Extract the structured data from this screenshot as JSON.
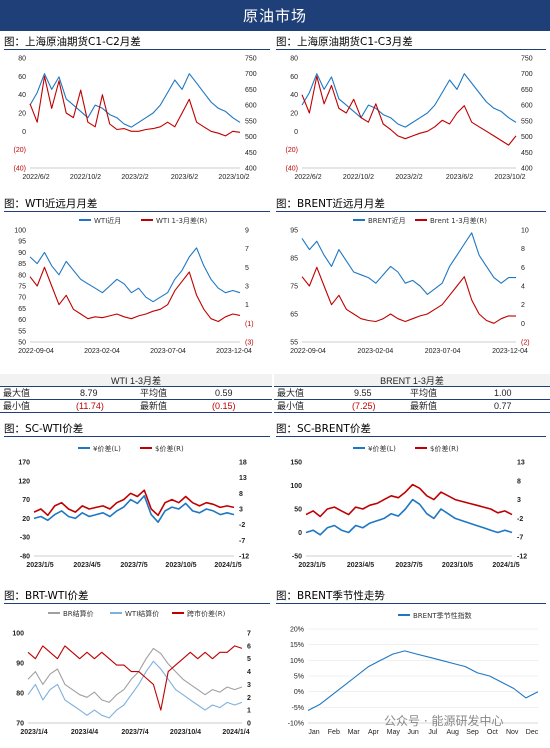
{
  "header": {
    "title": "原油市场"
  },
  "panels": {
    "p1": {
      "title": "图：上海原油期货C1-C2月差"
    },
    "p2": {
      "title": "图：上海原油期货C1-C3月差"
    },
    "p3": {
      "title": "图：WTI近远月月差"
    },
    "p4": {
      "title": "图：BRENT近远月月差"
    },
    "p5": {
      "title": "图：SC-WTI价差"
    },
    "p6": {
      "title": "图：SC-BRENT价差"
    },
    "p7": {
      "title": "图：BRT-WTI价差"
    },
    "p8": {
      "title": "图：BRENT季节性走势"
    }
  },
  "stats": {
    "wti": {
      "title": "WTI 1-3月差",
      "max_label": "最大值",
      "max": "8.79",
      "avg_label": "平均值",
      "avg": "0.59",
      "min_label": "最小值",
      "min": "(11.74)",
      "latest_label": "最新值",
      "latest": "(0.15)"
    },
    "brent": {
      "title": "BRENT 1-3月差",
      "max_label": "最大值",
      "max": "9.55",
      "avg_label": "平均值",
      "avg": "1.00",
      "min_label": "最小值",
      "min": "(7.25)",
      "latest_label": "最新值",
      "latest": "0.77"
    }
  },
  "watermark": "公众号 · 能源研发中心",
  "colors": {
    "blue": "#1f77c4",
    "red": "#c00000",
    "gray": "#a0a0a0",
    "lightblue": "#7fb0dc",
    "navy": "#1f3f78"
  },
  "chart_data": [
    {
      "id": "sc_c1c2",
      "type": "line",
      "x_ticks": [
        "2022/6/2",
        "2022/10/2",
        "2023/2/2",
        "2023/6/2",
        "2023/10/2"
      ],
      "left_ticks": [
        "80",
        "60",
        "40",
        "20",
        "0",
        "(20)",
        "(40)"
      ],
      "left_range": [
        -40,
        80
      ],
      "right_ticks": [
        "750",
        "700",
        "650",
        "600",
        "550",
        "500",
        "450",
        "400"
      ],
      "right_range": [
        400,
        750
      ],
      "series": [
        {
          "axis": "right",
          "color": "#1f77c4",
          "values": [
            600,
            640,
            700,
            650,
            690,
            620,
            600,
            580,
            560,
            600,
            590,
            570,
            560,
            540,
            530,
            545,
            560,
            575,
            600,
            640,
            680,
            650,
            700,
            670,
            640,
            610,
            590,
            580,
            560,
            545
          ]
        },
        {
          "axis": "left",
          "color": "#c00000",
          "values": [
            30,
            10,
            60,
            25,
            55,
            20,
            15,
            45,
            10,
            5,
            40,
            8,
            2,
            3,
            0,
            0,
            2,
            3,
            5,
            10,
            5,
            20,
            35,
            10,
            5,
            0,
            -2,
            -5,
            0,
            -1
          ]
        }
      ]
    },
    {
      "id": "sc_c1c3",
      "type": "line",
      "x_ticks": [
        "2022/6/2",
        "2022/10/2",
        "2023/2/2",
        "2023/6/2",
        "2023/10/2"
      ],
      "left_ticks": [
        "80",
        "60",
        "40",
        "20",
        "0",
        "(20)",
        "(40)"
      ],
      "left_range": [
        -40,
        80
      ],
      "right_ticks": [
        "750",
        "700",
        "650",
        "600",
        "550",
        "500",
        "450",
        "400"
      ],
      "right_range": [
        400,
        750
      ],
      "series": [
        {
          "axis": "right",
          "color": "#1f77c4",
          "values": [
            600,
            640,
            700,
            650,
            690,
            620,
            600,
            580,
            560,
            600,
            590,
            570,
            560,
            540,
            530,
            545,
            560,
            575,
            600,
            640,
            680,
            650,
            700,
            670,
            640,
            610,
            590,
            580,
            560,
            545
          ]
        },
        {
          "axis": "left",
          "color": "#c00000",
          "values": [
            40,
            20,
            60,
            30,
            50,
            25,
            20,
            35,
            15,
            10,
            30,
            8,
            2,
            -5,
            -8,
            -5,
            -2,
            0,
            5,
            12,
            8,
            20,
            28,
            10,
            5,
            0,
            -5,
            -10,
            -15,
            -5
          ]
        }
      ]
    },
    {
      "id": "wti_spread",
      "type": "line",
      "x_ticks": [
        "2022-09-04",
        "2023-02-04",
        "2023-07-04",
        "2023-12-04"
      ],
      "left_ticks": [
        "100",
        "95",
        "90",
        "85",
        "80",
        "75",
        "70",
        "65",
        "60",
        "55",
        "50"
      ],
      "left_range": [
        50,
        100
      ],
      "right_ticks": [
        "9",
        "7",
        "5",
        "3",
        "1",
        "(1)",
        "(3)"
      ],
      "right_range": [
        -3,
        9
      ],
      "legend": [
        "WTI近月",
        "WTI 1-3月差(R)"
      ],
      "series": [
        {
          "name": "WTI近月",
          "axis": "left",
          "color": "#1f77c4",
          "values": [
            88,
            85,
            90,
            84,
            80,
            86,
            82,
            78,
            76,
            74,
            72,
            75,
            78,
            76,
            72,
            74,
            70,
            68,
            70,
            72,
            78,
            82,
            88,
            92,
            84,
            78,
            74,
            72,
            73,
            72
          ]
        },
        {
          "name": "WTI 1-3月差(R)",
          "axis": "right",
          "color": "#c00000",
          "values": [
            4,
            3,
            5,
            3,
            1,
            2,
            0.5,
            0,
            -0.5,
            -0.3,
            -0.4,
            -0.2,
            0,
            -0.3,
            -0.5,
            -0.2,
            0,
            0.3,
            0.5,
            1,
            2.5,
            3.5,
            4.5,
            2,
            0.5,
            -0.5,
            -0.8,
            -0.3,
            0,
            -0.15
          ]
        }
      ]
    },
    {
      "id": "brent_spread",
      "type": "line",
      "x_ticks": [
        "2022-09-04",
        "2023-02-04",
        "2023-07-04",
        "2023-12-04"
      ],
      "left_ticks": [
        "95",
        "85",
        "75",
        "65",
        "55"
      ],
      "left_range": [
        55,
        95
      ],
      "right_ticks": [
        "10",
        "8",
        "6",
        "4",
        "2",
        "0",
        "(2)"
      ],
      "right_range": [
        -2,
        10
      ],
      "legend": [
        "BRENT近月",
        "Brent 1-3月差(R)"
      ],
      "series": [
        {
          "name": "BRENT近月",
          "axis": "left",
          "color": "#1f77c4",
          "values": [
            92,
            88,
            91,
            86,
            82,
            88,
            84,
            80,
            79,
            78,
            76,
            79,
            82,
            80,
            76,
            77,
            75,
            72,
            74,
            76,
            82,
            86,
            90,
            94,
            86,
            82,
            78,
            76,
            78,
            78
          ]
        },
        {
          "name": "Brent 1-3月差(R)",
          "axis": "right",
          "color": "#c00000",
          "values": [
            5,
            4,
            6,
            4,
            2,
            3,
            1.5,
            1,
            0.5,
            0.3,
            0.2,
            0.5,
            1,
            0.5,
            0.2,
            0.5,
            0.8,
            1,
            1.5,
            2,
            3,
            4,
            5,
            2.5,
            1,
            0.3,
            0,
            0.5,
            0.8,
            0.77
          ]
        }
      ]
    },
    {
      "id": "sc_wti",
      "type": "line",
      "x_ticks": [
        "2023/1/5",
        "2023/4/5",
        "2023/7/5",
        "2023/10/5",
        "2024/1/5"
      ],
      "left_ticks": [
        "170",
        "120",
        "70",
        "20",
        "-30",
        "-80"
      ],
      "left_range": [
        -80,
        170
      ],
      "right_ticks": [
        "18",
        "13",
        "8",
        "3",
        "-2",
        "-7",
        "-12"
      ],
      "right_range": [
        -12,
        18
      ],
      "legend": [
        "¥价差(L)",
        "$价差(R)"
      ],
      "series": [
        {
          "name": "¥价差(L)",
          "axis": "left",
          "color": "#1f77c4",
          "values": [
            20,
            25,
            15,
            30,
            40,
            25,
            20,
            35,
            25,
            30,
            35,
            25,
            40,
            50,
            70,
            60,
            80,
            30,
            10,
            40,
            50,
            45,
            60,
            40,
            35,
            45,
            40,
            30,
            35,
            30
          ]
        },
        {
          "name": "$价差(R)",
          "axis": "right",
          "color": "#c00000",
          "values": [
            2,
            3,
            1,
            4,
            5,
            3,
            2,
            4,
            3,
            3.5,
            4,
            3,
            5,
            6,
            8,
            7,
            9,
            3,
            1,
            5,
            6,
            5,
            7,
            5,
            4,
            5,
            4.5,
            3.5,
            4,
            3.5
          ]
        }
      ]
    },
    {
      "id": "sc_brent",
      "type": "line",
      "x_ticks": [
        "2023/1/5",
        "2023/4/5",
        "2023/7/5",
        "2023/10/5",
        "2024/1/5"
      ],
      "left_ticks": [
        "150",
        "100",
        "50",
        "0",
        "-50"
      ],
      "left_range": [
        -50,
        150
      ],
      "right_ticks": [
        "13",
        "8",
        "3",
        "-2",
        "-7",
        "-12"
      ],
      "right_range": [
        -12,
        13
      ],
      "legend": [
        "¥价差(L)",
        "$价差(R)"
      ],
      "series": [
        {
          "name": "¥价差(L)",
          "axis": "left",
          "color": "#1f77c4",
          "values": [
            0,
            5,
            -5,
            10,
            15,
            5,
            0,
            15,
            10,
            20,
            25,
            30,
            40,
            35,
            50,
            70,
            60,
            40,
            30,
            50,
            40,
            30,
            25,
            20,
            15,
            10,
            5,
            0,
            5,
            0
          ]
        },
        {
          "name": "$价差(R)",
          "axis": "right",
          "color": "#c00000",
          "values": [
            -1,
            0,
            -1.5,
            0.5,
            1,
            0,
            -1,
            1,
            0.5,
            1.5,
            2,
            3,
            4,
            3.5,
            5,
            7,
            6,
            4,
            3,
            5,
            4,
            3,
            2.5,
            2,
            1.5,
            1,
            0.5,
            -0.5,
            0,
            -1
          ]
        }
      ]
    },
    {
      "id": "brt_wti",
      "type": "line",
      "x_ticks": [
        "2023/1/4",
        "2023/4/4",
        "2023/7/4",
        "2023/10/4",
        "2024/1/4"
      ],
      "left_ticks": [
        "100",
        "90",
        "80",
        "70"
      ],
      "left_range": [
        65,
        100
      ],
      "right_ticks": [
        "7",
        "6",
        "5",
        "4",
        "3",
        "2",
        "1",
        "0"
      ],
      "right_range": [
        0,
        7
      ],
      "legend": [
        "BR结算价",
        "WTI结算价",
        "跨市价差(R)"
      ],
      "series": [
        {
          "name": "BR结算价",
          "axis": "left",
          "color": "#a0a0a0",
          "values": [
            82,
            85,
            80,
            84,
            86,
            80,
            78,
            76,
            75,
            77,
            74,
            73,
            76,
            78,
            82,
            85,
            90,
            94,
            92,
            88,
            85,
            82,
            80,
            78,
            76,
            78,
            77,
            79,
            78,
            79
          ]
        },
        {
          "name": "WTI结算价",
          "axis": "left",
          "color": "#7fb0dc",
          "values": [
            76,
            80,
            74,
            78,
            80,
            74,
            72,
            70,
            68,
            70,
            68,
            67,
            70,
            72,
            76,
            80,
            85,
            89,
            86,
            82,
            78,
            76,
            74,
            72,
            70,
            72,
            71,
            73,
            72,
            73
          ]
        },
        {
          "name": "跨市价差(R)",
          "axis": "right",
          "color": "#c00000",
          "values": [
            5.5,
            5,
            6,
            5.5,
            5,
            6,
            5.5,
            5,
            5.5,
            5,
            5.5,
            5,
            4.5,
            4.5,
            4,
            4,
            3.5,
            3,
            1,
            4,
            4.5,
            5,
            5.5,
            5,
            5.5,
            5,
            5.5,
            5.5,
            6,
            5.8
          ]
        }
      ]
    },
    {
      "id": "brent_seasonal",
      "type": "line",
      "x_ticks": [
        "Jan",
        "Feb",
        "Mar",
        "Apr",
        "May",
        "Jun",
        "Jul",
        "Aug",
        "Sep",
        "Oct",
        "Nov",
        "Dec"
      ],
      "left_ticks": [
        "20%",
        "15%",
        "10%",
        "5%",
        "0%",
        "-5%",
        "-10%"
      ],
      "left_range": [
        -10,
        20
      ],
      "legend": [
        "BRENT季节性指数"
      ],
      "series": [
        {
          "name": "BRENT季节性指数",
          "axis": "left",
          "color": "#1f77c4",
          "values": [
            -6,
            -4,
            -1,
            2,
            5,
            8,
            10,
            12,
            13,
            12,
            11,
            10,
            9,
            8,
            6,
            5,
            3,
            1,
            -2,
            0
          ]
        }
      ]
    }
  ]
}
